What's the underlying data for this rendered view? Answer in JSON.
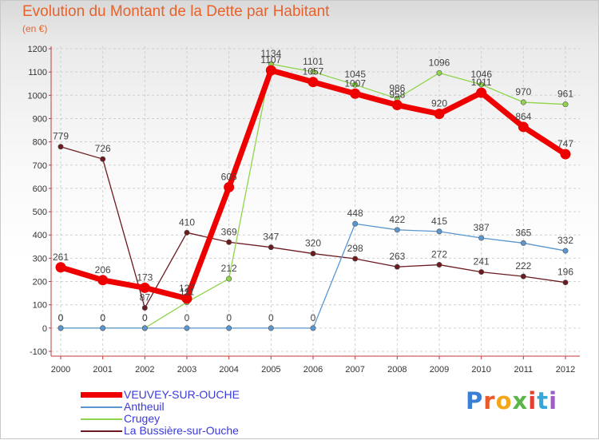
{
  "title": "Evolution du Montant de la Dette par Habitant",
  "subtitle": "(en €)",
  "logo": {
    "text": "Proxiti",
    "colors": [
      "#3b7fd4",
      "#e85a2a",
      "#f2a71b",
      "#5bb548",
      "#e53d2f",
      "#37a7d8",
      "#9a5fc2"
    ]
  },
  "chart_data": {
    "type": "line",
    "x": [
      "2000",
      "2001",
      "2002",
      "2003",
      "2004",
      "2005",
      "2006",
      "2007",
      "2008",
      "2009",
      "2010",
      "2011",
      "2012"
    ],
    "ylim": [
      -100,
      1200
    ],
    "yticks": [
      -100,
      0,
      100,
      200,
      300,
      400,
      500,
      600,
      700,
      800,
      900,
      1000,
      1100,
      1200
    ],
    "grid": true,
    "legend_position": "bottom-left",
    "series": [
      {
        "name": "La Bussière-sur-Ouche",
        "color": "#6b1a1f",
        "values": [
          779,
          726,
          87,
          410,
          369,
          347,
          320,
          298,
          263,
          272,
          241,
          222,
          196
        ]
      },
      {
        "name": "Crugey",
        "color": "#8fd44a",
        "values": [
          0,
          0,
          0,
          111,
          212,
          1134,
          1101,
          1045,
          986,
          1096,
          1046,
          970,
          961
        ]
      },
      {
        "name": "Antheuil",
        "color": "#5a96cf",
        "values": [
          0,
          0,
          0,
          0,
          0,
          0,
          0,
          448,
          422,
          415,
          387,
          365,
          332
        ]
      },
      {
        "name": "VEUVEY-SUR-OUCHE",
        "color": "#ee0000",
        "values": [
          261,
          206,
          173,
          127,
          605,
          1107,
          1057,
          1007,
          958,
          920,
          1011,
          864,
          747
        ]
      }
    ],
    "legend_order": [
      "VEUVEY-SUR-OUCHE",
      "Antheuil",
      "Crugey",
      "La Bussière-sur-Ouche"
    ]
  }
}
